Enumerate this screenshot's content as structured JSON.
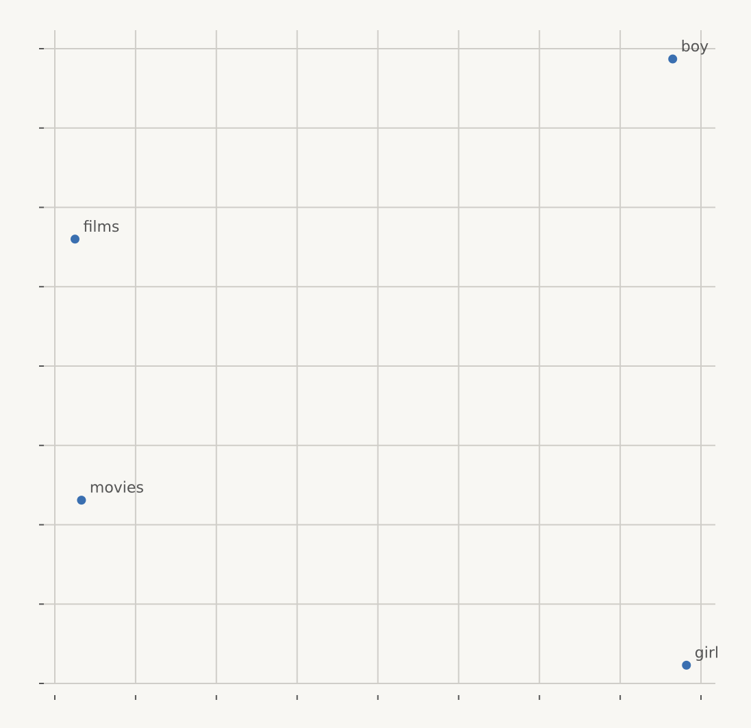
{
  "chart_data": {
    "type": "scatter",
    "xlim": [
      0,
      8
    ],
    "ylim": [
      0,
      8
    ],
    "x_ticks": [
      0,
      1,
      2,
      3,
      4,
      5,
      6,
      7,
      8
    ],
    "y_ticks": [
      0,
      1,
      2,
      3,
      4,
      5,
      6,
      7,
      8
    ],
    "grid": true,
    "tick_labels_visible": false,
    "marker_color": "#3a6fb0",
    "points": [
      {
        "label": "boy",
        "x": 7.65,
        "y": 7.87
      },
      {
        "label": "films",
        "x": 0.25,
        "y": 5.6
      },
      {
        "label": "movies",
        "x": 0.33,
        "y": 2.31
      },
      {
        "label": "girl",
        "x": 7.82,
        "y": 0.23
      }
    ]
  }
}
